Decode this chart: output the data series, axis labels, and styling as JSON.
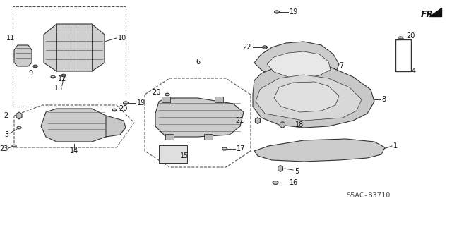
{
  "bg_color": "#ffffff",
  "line_color": "#333333",
  "title_code": "S5AC-B3710",
  "font_size": 7.0,
  "lw": 0.8,
  "part_fill": "#d8d8d8",
  "part_stroke": "#333333"
}
